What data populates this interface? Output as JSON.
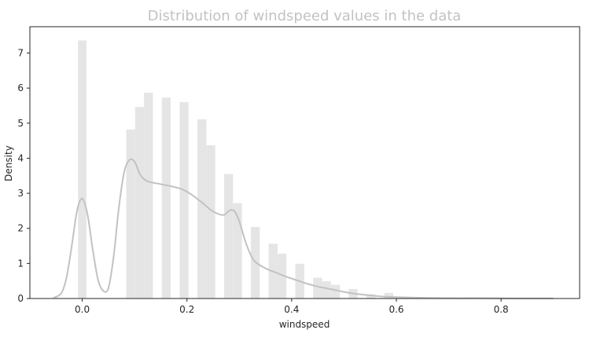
{
  "chart_data": {
    "type": "bar",
    "title": "Distribution of windspeed values in the data",
    "xlabel": "windspeed",
    "ylabel": "Density",
    "xlim": [
      -0.1,
      0.95
    ],
    "ylim": [
      0,
      7.75
    ],
    "x_ticks": [
      "0.0",
      "0.2",
      "0.4",
      "0.6",
      "0.8"
    ],
    "y_ticks": [
      "0",
      "1",
      "2",
      "3",
      "4",
      "5",
      "6",
      "7"
    ],
    "grid": false,
    "legend": "none",
    "colors": {
      "bars": "#e5e5e5",
      "kde": "#c2c2c2",
      "title": "#c2c2c2",
      "axes": "#262626"
    },
    "histogram": [
      {
        "x0": -0.008,
        "x1": 0.008,
        "density": 7.36
      },
      {
        "x0": 0.084,
        "x1": 0.101,
        "density": 4.82
      },
      {
        "x0": 0.101,
        "x1": 0.118,
        "density": 5.46
      },
      {
        "x0": 0.118,
        "x1": 0.135,
        "density": 5.87
      },
      {
        "x0": 0.152,
        "x1": 0.169,
        "density": 5.73
      },
      {
        "x0": 0.186,
        "x1": 0.203,
        "density": 5.6
      },
      {
        "x0": 0.22,
        "x1": 0.237,
        "density": 5.11
      },
      {
        "x0": 0.237,
        "x1": 0.254,
        "density": 4.37
      },
      {
        "x0": 0.271,
        "x1": 0.288,
        "density": 3.55
      },
      {
        "x0": 0.288,
        "x1": 0.305,
        "density": 2.72
      },
      {
        "x0": 0.322,
        "x1": 0.339,
        "density": 2.04
      },
      {
        "x0": 0.356,
        "x1": 0.373,
        "density": 1.56
      },
      {
        "x0": 0.373,
        "x1": 0.39,
        "density": 1.28
      },
      {
        "x0": 0.407,
        "x1": 0.424,
        "density": 0.99
      },
      {
        "x0": 0.441,
        "x1": 0.458,
        "density": 0.59
      },
      {
        "x0": 0.458,
        "x1": 0.475,
        "density": 0.49
      },
      {
        "x0": 0.475,
        "x1": 0.492,
        "density": 0.39
      },
      {
        "x0": 0.509,
        "x1": 0.526,
        "density": 0.27
      },
      {
        "x0": 0.543,
        "x1": 0.56,
        "density": 0.12
      },
      {
        "x0": 0.577,
        "x1": 0.594,
        "density": 0.16
      },
      {
        "x0": 0.611,
        "x1": 0.628,
        "density": 0.05
      },
      {
        "x0": 0.645,
        "x1": 0.662,
        "density": 0.03
      },
      {
        "x0": 0.679,
        "x1": 0.696,
        "density": 0.02
      },
      {
        "x0": 0.713,
        "x1": 0.73,
        "density": 0.01
      },
      {
        "x0": 0.747,
        "x1": 0.764,
        "density": 0.01
      },
      {
        "x0": 0.832,
        "x1": 0.849,
        "density": 0.01
      }
    ],
    "kde": {
      "x": [
        -0.055,
        -0.04,
        -0.03,
        -0.02,
        -0.01,
        0.0,
        0.01,
        0.02,
        0.03,
        0.04,
        0.05,
        0.06,
        0.07,
        0.08,
        0.09,
        0.1,
        0.11,
        0.12,
        0.13,
        0.15,
        0.17,
        0.19,
        0.21,
        0.23,
        0.25,
        0.27,
        0.28,
        0.29,
        0.3,
        0.31,
        0.32,
        0.33,
        0.35,
        0.37,
        0.39,
        0.41,
        0.43,
        0.45,
        0.47,
        0.49,
        0.51,
        0.53,
        0.55,
        0.57,
        0.6,
        0.65,
        0.7,
        0.75,
        0.8,
        0.85,
        0.9
      ],
      "y": [
        0.02,
        0.15,
        0.6,
        1.5,
        2.5,
        2.85,
        2.4,
        1.4,
        0.55,
        0.22,
        0.3,
        1.2,
        2.6,
        3.6,
        3.95,
        3.9,
        3.55,
        3.38,
        3.32,
        3.26,
        3.2,
        3.12,
        2.95,
        2.72,
        2.48,
        2.38,
        2.5,
        2.5,
        2.2,
        1.7,
        1.3,
        1.05,
        0.86,
        0.74,
        0.62,
        0.52,
        0.42,
        0.34,
        0.28,
        0.22,
        0.16,
        0.12,
        0.09,
        0.06,
        0.04,
        0.02,
        0.01,
        0.01,
        0.005,
        0.003,
        0.002
      ]
    }
  }
}
